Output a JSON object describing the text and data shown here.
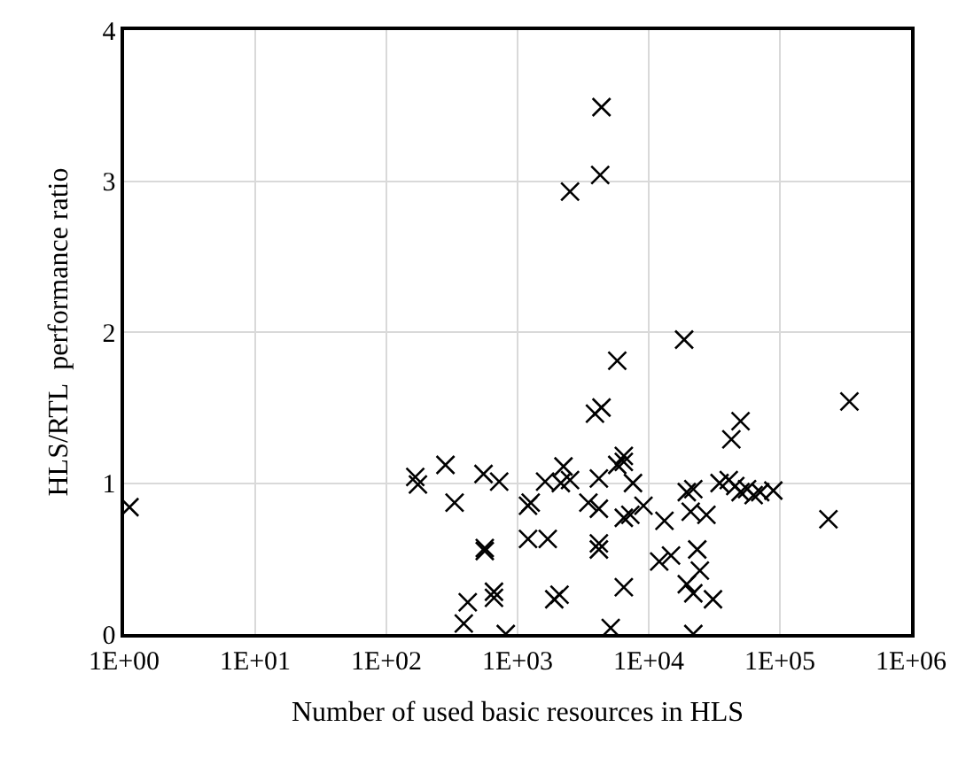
{
  "chart_data": {
    "type": "scatter",
    "xlabel": "Number of used basic resources in HLS",
    "ylabel": "HLS/RTL  performance ratio",
    "log": "x",
    "xlim": [
      1,
      1000000
    ],
    "xticks": [
      {
        "value": 1,
        "label": "1E+00"
      },
      {
        "value": 10,
        "label": "1E+01"
      },
      {
        "value": 100,
        "label": "1E+02"
      },
      {
        "value": 1000,
        "label": "1E+03"
      },
      {
        "value": 10000,
        "label": "1E+04"
      },
      {
        "value": 100000,
        "label": "1E+05"
      },
      {
        "value": 1000000,
        "label": "1E+06"
      }
    ],
    "ylim": [
      0,
      4
    ],
    "yticks": [
      0,
      1,
      2,
      3,
      4
    ],
    "grid": true,
    "marker": "cross",
    "series": [
      {
        "color": "#000000",
        "x": [
          1.1,
          166,
          174,
          282,
          331,
          550,
          724,
          562,
          562,
          417,
          389,
          661,
          661,
          813,
          1202,
          1698,
          1202,
          1259,
          1622,
          2138,
          2512,
          2239,
          1905,
          2089,
          4169,
          3467,
          4169,
          4169,
          4169,
          3890,
          4365,
          5129,
          6457,
          6457,
          6457,
          4365,
          4266,
          2512,
          18621,
          5754,
          6457,
          5754,
          7586,
          7244,
          9120,
          13183,
          12023,
          14791,
          19498,
          21878,
          20893,
          27542,
          23442,
          24547,
          19498,
          21878,
          30903,
          21878,
          34674,
          40738,
          45709,
          50119,
          56234,
          63096,
          70795,
          89125,
          50119,
          42658,
          338844,
          234423
        ],
        "values": [
          0.84,
          1.04,
          0.99,
          1.12,
          0.87,
          1.06,
          1.01,
          0.57,
          0.55,
          0.21,
          0.07,
          0.28,
          0.24,
          0.0,
          0.63,
          0.63,
          0.85,
          0.87,
          1.01,
          1.0,
          1.02,
          1.11,
          0.23,
          0.26,
          1.03,
          0.87,
          0.83,
          0.6,
          0.56,
          1.46,
          1.5,
          0.04,
          1.14,
          0.77,
          0.31,
          3.49,
          3.04,
          2.93,
          1.95,
          1.81,
          1.18,
          1.12,
          1.0,
          0.79,
          0.85,
          0.75,
          0.48,
          0.52,
          0.94,
          0.96,
          0.81,
          0.79,
          0.56,
          0.42,
          0.33,
          0.27,
          0.23,
          0.0,
          1.0,
          1.02,
          0.98,
          0.94,
          0.96,
          0.92,
          0.94,
          0.95,
          1.41,
          1.29,
          1.54,
          0.76
        ]
      }
    ]
  }
}
